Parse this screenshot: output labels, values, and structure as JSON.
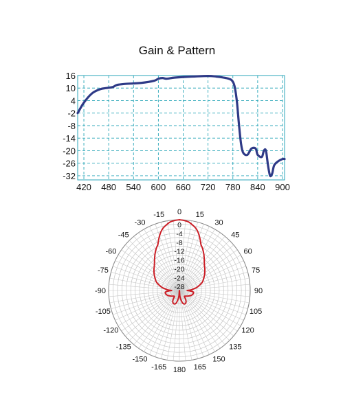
{
  "title": "Gain & Pattern",
  "chart_data": [
    {
      "type": "line",
      "title": "Gain & Pattern",
      "xlabel": "",
      "ylabel": "",
      "xlim": [
        405,
        905
      ],
      "ylim": [
        -34,
        16
      ],
      "x_ticks": [
        420,
        480,
        540,
        600,
        660,
        720,
        780,
        840,
        900
      ],
      "y_ticks": [
        16,
        10,
        4,
        -2,
        -8,
        -14,
        -20,
        -26,
        -32
      ],
      "grid": true,
      "color": "#2e3a87",
      "series": [
        {
          "x": [
            405,
            420,
            440,
            460,
            475,
            490,
            500,
            520,
            560,
            590,
            600,
            610,
            620,
            640,
            680,
            720,
            740,
            770,
            780,
            785,
            790,
            795,
            800,
            805,
            815,
            825,
            835,
            840,
            850,
            855,
            860,
            865,
            870,
            875,
            880,
            890,
            900,
            905
          ],
          "y": [
            -2,
            3,
            7.5,
            9.5,
            10,
            10.5,
            11.5,
            12,
            12.5,
            13.5,
            14.5,
            14.8,
            14.5,
            15,
            15.5,
            15.8,
            15.5,
            14.5,
            13,
            10,
            3,
            -8,
            -17,
            -21,
            -22,
            -19,
            -19,
            -22,
            -23,
            -20,
            -20,
            -27,
            -32,
            -31,
            -27,
            -25,
            -24,
            -24
          ]
        }
      ]
    },
    {
      "type": "polar",
      "angle_ticks": [
        "-180",
        "-165",
        "-150",
        "-135",
        "-120",
        "-105",
        "-90",
        "-75",
        "-60",
        "-45",
        "-30",
        "-15",
        "0",
        "15",
        "30",
        "45",
        "60",
        "75",
        "90",
        "105",
        "120",
        "135",
        "150",
        "165",
        "180"
      ],
      "radial_ticks": [
        "0",
        "-4",
        "-8",
        "-12",
        "-16",
        "-20",
        "-24",
        "-28"
      ],
      "rlim": [
        -32,
        0
      ],
      "color": "#cc1f27",
      "series": [
        {
          "theta": [
            0,
            4,
            8,
            12,
            15,
            18,
            22,
            25,
            28,
            32,
            36,
            40,
            45,
            50,
            55,
            60,
            65,
            70,
            75,
            80,
            85,
            88,
            90,
            92,
            95,
            100,
            110,
            120,
            130,
            140,
            145,
            150,
            155,
            160,
            165,
            170,
            175,
            180
          ],
          "r": [
            0,
            -0.3,
            -0.8,
            -2,
            -3,
            -4.5,
            -7,
            -9,
            -10,
            -11.5,
            -13,
            -14.5,
            -16,
            -17,
            -18,
            -19,
            -20,
            -21,
            -22.5,
            -24,
            -26,
            -27,
            -28.5,
            -27.5,
            -26,
            -25.5,
            -26,
            -27,
            -28,
            -28.5,
            -27,
            -26,
            -25.5,
            -25.5,
            -26,
            -27.5,
            -29.5,
            -32
          ]
        }
      ]
    }
  ]
}
